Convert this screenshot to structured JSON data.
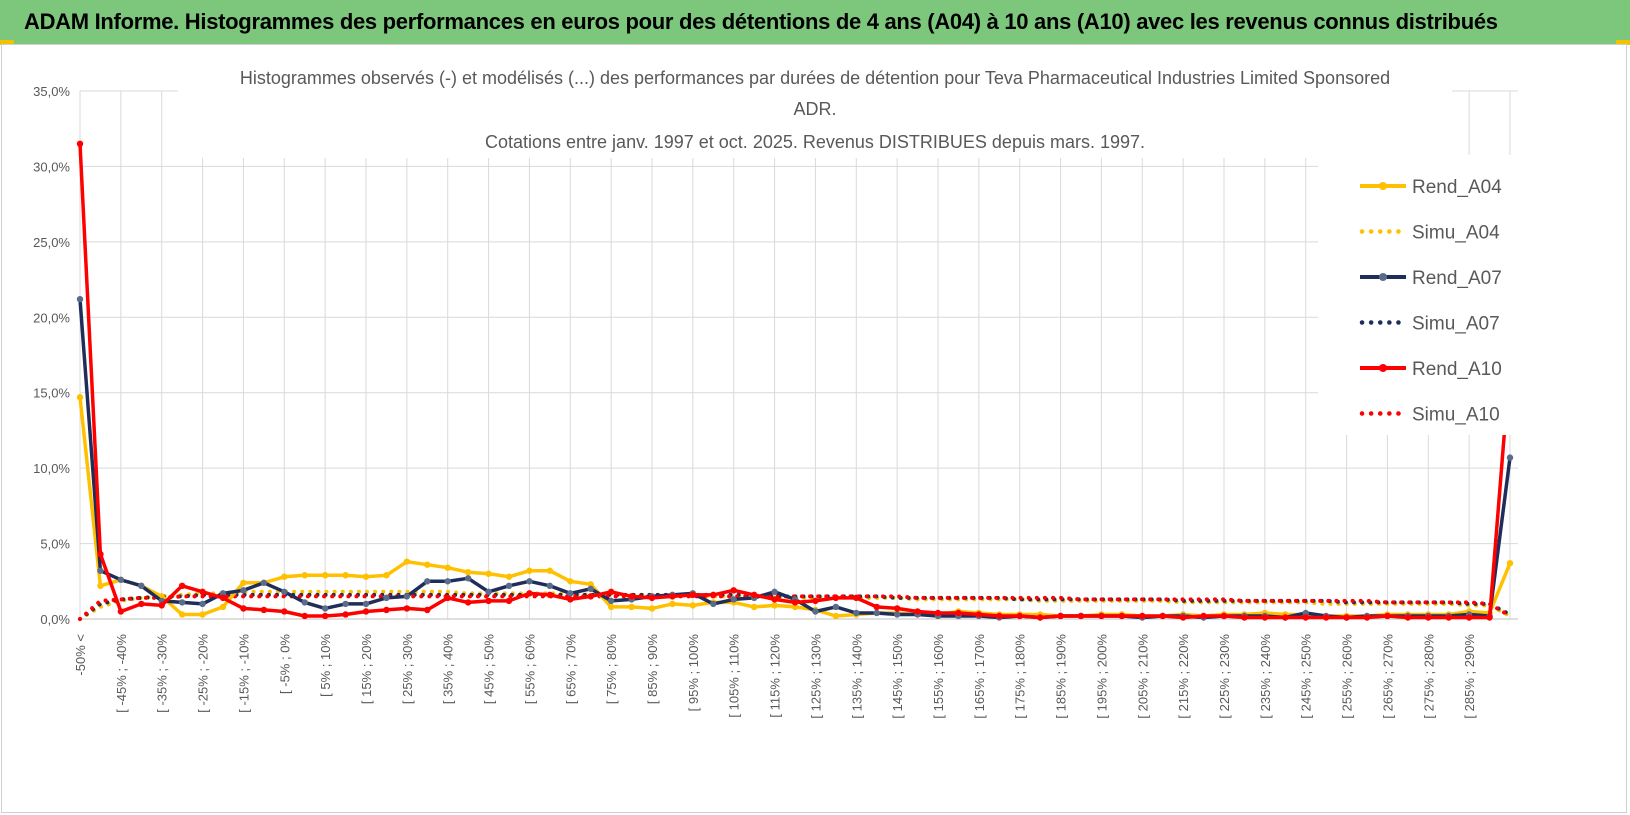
{
  "header": {
    "title": "ADAM Informe. Histogrammes des performances en euros pour des détentions de 4 ans (A04) à 10 ans (A10) avec les revenus connus distribués"
  },
  "colors": {
    "header_bg": "#7dc77d",
    "a04": "#ffc000",
    "a07": "#1f2d5a",
    "a07_marker": "#5a6c8c",
    "a10": "#ff0000",
    "grid": "#d9d9d9"
  },
  "chart_data": {
    "type": "line",
    "title_lines": [
      "Histogrammes observés (-) et modélisés (...) des performances par durées de détention pour Teva Pharmaceutical Industries Limited Sponsored",
      "ADR.",
      "Cotations entre janv. 1997 et oct. 2025.  Revenus DISTRIBUES depuis mars. 1997."
    ],
    "ylim": [
      0,
      0.35
    ],
    "yticks": [
      {
        "v": 0,
        "label": "0,0%"
      },
      {
        "v": 0.05,
        "label": "5,0%"
      },
      {
        "v": 0.1,
        "label": "10,0%"
      },
      {
        "v": 0.15,
        "label": "15,0%"
      },
      {
        "v": 0.2,
        "label": "20,0%"
      },
      {
        "v": 0.25,
        "label": "25,0%"
      },
      {
        "v": 0.3,
        "label": "30,0%"
      },
      {
        "v": 0.35,
        "label": "35,0%"
      }
    ],
    "xtick_labels": [
      "-50% <",
      "[ -45% ; -40%",
      "[ -35% ; -30%",
      "[ -25% ; -20%",
      "[ -15% ; -10%",
      "[ -5% ; 0%",
      "[ 5% ; 10%",
      "[ 15% ; 20%",
      "[ 25% ; 30%",
      "[ 35% ; 40%",
      "[ 45% ; 50%",
      "[ 55% ; 60%",
      "[ 65% ; 70%",
      "[ 75% ; 80%",
      "[ 85% ; 90%",
      "[ 95% ; 100%",
      "[ 105% ; 110%",
      "[ 115% ; 120%",
      "[ 125% ; 130%",
      "[ 135% ; 140%",
      "[ 145% ; 150%",
      "[ 155% ; 160%",
      "[ 165% ; 170%",
      "[ 175% ; 180%",
      "[ 185% ; 190%",
      "[ 195% ; 200%",
      "[ 205% ; 210%",
      "[ 215% ; 220%",
      "[ 225% ; 230%",
      "[ 235% ; 240%",
      "[ 245% ; 250%",
      "[ 255% ; 260%",
      "[ 265% ; 270%",
      "[ 275% ; 280%",
      "[ 285% ; 290%"
    ],
    "legend_position": "right",
    "series": [
      {
        "name": "Rend_A04",
        "style": "solid",
        "color": "#ffc000",
        "marker": "#ffc000",
        "values": [
          0.147,
          0.022,
          0.026,
          0.022,
          0.015,
          0.003,
          0.003,
          0.008,
          0.024,
          0.024,
          0.028,
          0.029,
          0.029,
          0.029,
          0.028,
          0.029,
          0.038,
          0.036,
          0.034,
          0.031,
          0.03,
          0.028,
          0.032,
          0.032,
          0.025,
          0.023,
          0.008,
          0.008,
          0.007,
          0.01,
          0.009,
          0.011,
          0.011,
          0.008,
          0.009,
          0.008,
          0.006,
          0.002,
          0.003,
          0.004,
          0.004,
          0.003,
          0.003,
          0.005,
          0.004,
          0.003,
          0.003,
          0.003,
          0.002,
          0.002,
          0.003,
          0.003,
          0.002,
          0.002,
          0.003,
          0.002,
          0.003,
          0.003,
          0.004,
          0.003,
          0.003,
          0.002,
          0.002,
          0.002,
          0.003,
          0.003,
          0.003,
          0.003,
          0.005,
          0.004,
          0.037
        ]
      },
      {
        "name": "Simu_A04",
        "style": "dotted",
        "color": "#ffc000",
        "values": [
          0.0,
          0.008,
          0.012,
          0.014,
          0.015,
          0.016,
          0.017,
          0.017,
          0.018,
          0.018,
          0.018,
          0.018,
          0.018,
          0.018,
          0.018,
          0.018,
          0.018,
          0.018,
          0.018,
          0.017,
          0.017,
          0.017,
          0.017,
          0.017,
          0.017,
          0.016,
          0.016,
          0.016,
          0.016,
          0.016,
          0.015,
          0.015,
          0.015,
          0.015,
          0.015,
          0.014,
          0.014,
          0.014,
          0.014,
          0.014,
          0.014,
          0.013,
          0.013,
          0.013,
          0.013,
          0.013,
          0.013,
          0.012,
          0.012,
          0.012,
          0.012,
          0.012,
          0.012,
          0.012,
          0.011,
          0.011,
          0.011,
          0.011,
          0.011,
          0.011,
          0.011,
          0.01,
          0.01,
          0.01,
          0.01,
          0.01,
          0.01,
          0.01,
          0.009,
          0.009,
          0.002
        ]
      },
      {
        "name": "Rend_A07",
        "style": "solid",
        "color": "#1f2d5a",
        "marker": "#5a6c8c",
        "values": [
          0.212,
          0.032,
          0.026,
          0.022,
          0.012,
          0.011,
          0.01,
          0.017,
          0.019,
          0.024,
          0.018,
          0.011,
          0.007,
          0.01,
          0.01,
          0.014,
          0.015,
          0.025,
          0.025,
          0.027,
          0.018,
          0.022,
          0.025,
          0.022,
          0.017,
          0.02,
          0.012,
          0.013,
          0.015,
          0.016,
          0.017,
          0.01,
          0.013,
          0.014,
          0.018,
          0.013,
          0.005,
          0.008,
          0.004,
          0.004,
          0.003,
          0.003,
          0.002,
          0.002,
          0.002,
          0.001,
          0.002,
          0.001,
          0.002,
          0.002,
          0.002,
          0.002,
          0.001,
          0.002,
          0.002,
          0.001,
          0.002,
          0.002,
          0.002,
          0.001,
          0.004,
          0.002,
          0.001,
          0.002,
          0.002,
          0.002,
          0.002,
          0.002,
          0.003,
          0.002,
          0.107
        ]
      },
      {
        "name": "Simu_A07",
        "style": "dotted",
        "color": "#1f2d5a",
        "values": [
          0.0,
          0.01,
          0.013,
          0.014,
          0.015,
          0.015,
          0.016,
          0.016,
          0.016,
          0.016,
          0.016,
          0.016,
          0.016,
          0.016,
          0.016,
          0.016,
          0.016,
          0.016,
          0.016,
          0.016,
          0.016,
          0.016,
          0.016,
          0.016,
          0.016,
          0.016,
          0.016,
          0.016,
          0.016,
          0.016,
          0.016,
          0.016,
          0.016,
          0.016,
          0.015,
          0.015,
          0.015,
          0.015,
          0.015,
          0.015,
          0.014,
          0.014,
          0.014,
          0.014,
          0.014,
          0.014,
          0.013,
          0.013,
          0.013,
          0.013,
          0.013,
          0.013,
          0.013,
          0.013,
          0.012,
          0.012,
          0.012,
          0.012,
          0.012,
          0.012,
          0.012,
          0.012,
          0.011,
          0.011,
          0.011,
          0.011,
          0.011,
          0.011,
          0.01,
          0.01,
          0.003
        ]
      },
      {
        "name": "Rend_A10",
        "style": "solid",
        "color": "#ff0000",
        "marker": "#ff0000",
        "values": [
          0.315,
          0.043,
          0.005,
          0.01,
          0.009,
          0.022,
          0.018,
          0.014,
          0.007,
          0.006,
          0.005,
          0.002,
          0.002,
          0.003,
          0.005,
          0.006,
          0.007,
          0.006,
          0.014,
          0.011,
          0.012,
          0.012,
          0.017,
          0.016,
          0.013,
          0.015,
          0.018,
          0.015,
          0.014,
          0.015,
          0.016,
          0.016,
          0.019,
          0.016,
          0.013,
          0.011,
          0.012,
          0.014,
          0.014,
          0.008,
          0.007,
          0.005,
          0.004,
          0.004,
          0.003,
          0.002,
          0.002,
          0.001,
          0.002,
          0.002,
          0.002,
          0.002,
          0.002,
          0.002,
          0.001,
          0.002,
          0.002,
          0.001,
          0.001,
          0.001,
          0.001,
          0.001,
          0.001,
          0.001,
          0.002,
          0.001,
          0.001,
          0.001,
          0.001,
          0.001,
          0.17
        ]
      },
      {
        "name": "Simu_A10",
        "style": "dotted",
        "color": "#ff0000",
        "values": [
          0.0,
          0.012,
          0.013,
          0.014,
          0.014,
          0.015,
          0.015,
          0.015,
          0.015,
          0.015,
          0.015,
          0.015,
          0.015,
          0.015,
          0.015,
          0.015,
          0.015,
          0.015,
          0.015,
          0.015,
          0.015,
          0.015,
          0.015,
          0.015,
          0.015,
          0.015,
          0.015,
          0.015,
          0.015,
          0.015,
          0.015,
          0.015,
          0.015,
          0.015,
          0.015,
          0.015,
          0.015,
          0.015,
          0.015,
          0.015,
          0.015,
          0.014,
          0.014,
          0.014,
          0.014,
          0.014,
          0.014,
          0.014,
          0.014,
          0.013,
          0.013,
          0.013,
          0.013,
          0.013,
          0.013,
          0.013,
          0.013,
          0.012,
          0.012,
          0.012,
          0.012,
          0.012,
          0.012,
          0.012,
          0.011,
          0.011,
          0.011,
          0.011,
          0.011,
          0.01,
          0.002
        ]
      }
    ]
  }
}
